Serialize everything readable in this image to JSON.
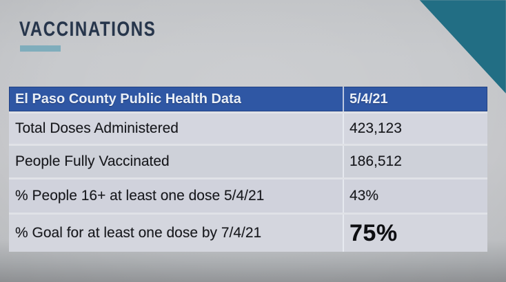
{
  "slide": {
    "title": "VACCINATIONS",
    "colors": {
      "title_text": "#26354b",
      "accent_bar": "#7fadbc",
      "corner_triangle": "#226e84",
      "header_bg": "#2f57a4",
      "header_text": "#e9eff7"
    }
  },
  "table": {
    "header": {
      "label": "El Paso County Public Health Data",
      "date": "5/4/21"
    },
    "rows": [
      {
        "label": "Total Doses Administered",
        "value": "423,123"
      },
      {
        "label": "People Fully Vaccinated",
        "value": "186,512"
      },
      {
        "label": "% People 16+ at least one dose 5/4/21",
        "value": "43%"
      },
      {
        "label": "% Goal for at least one dose by 7/4/21",
        "value": "75%"
      }
    ]
  }
}
